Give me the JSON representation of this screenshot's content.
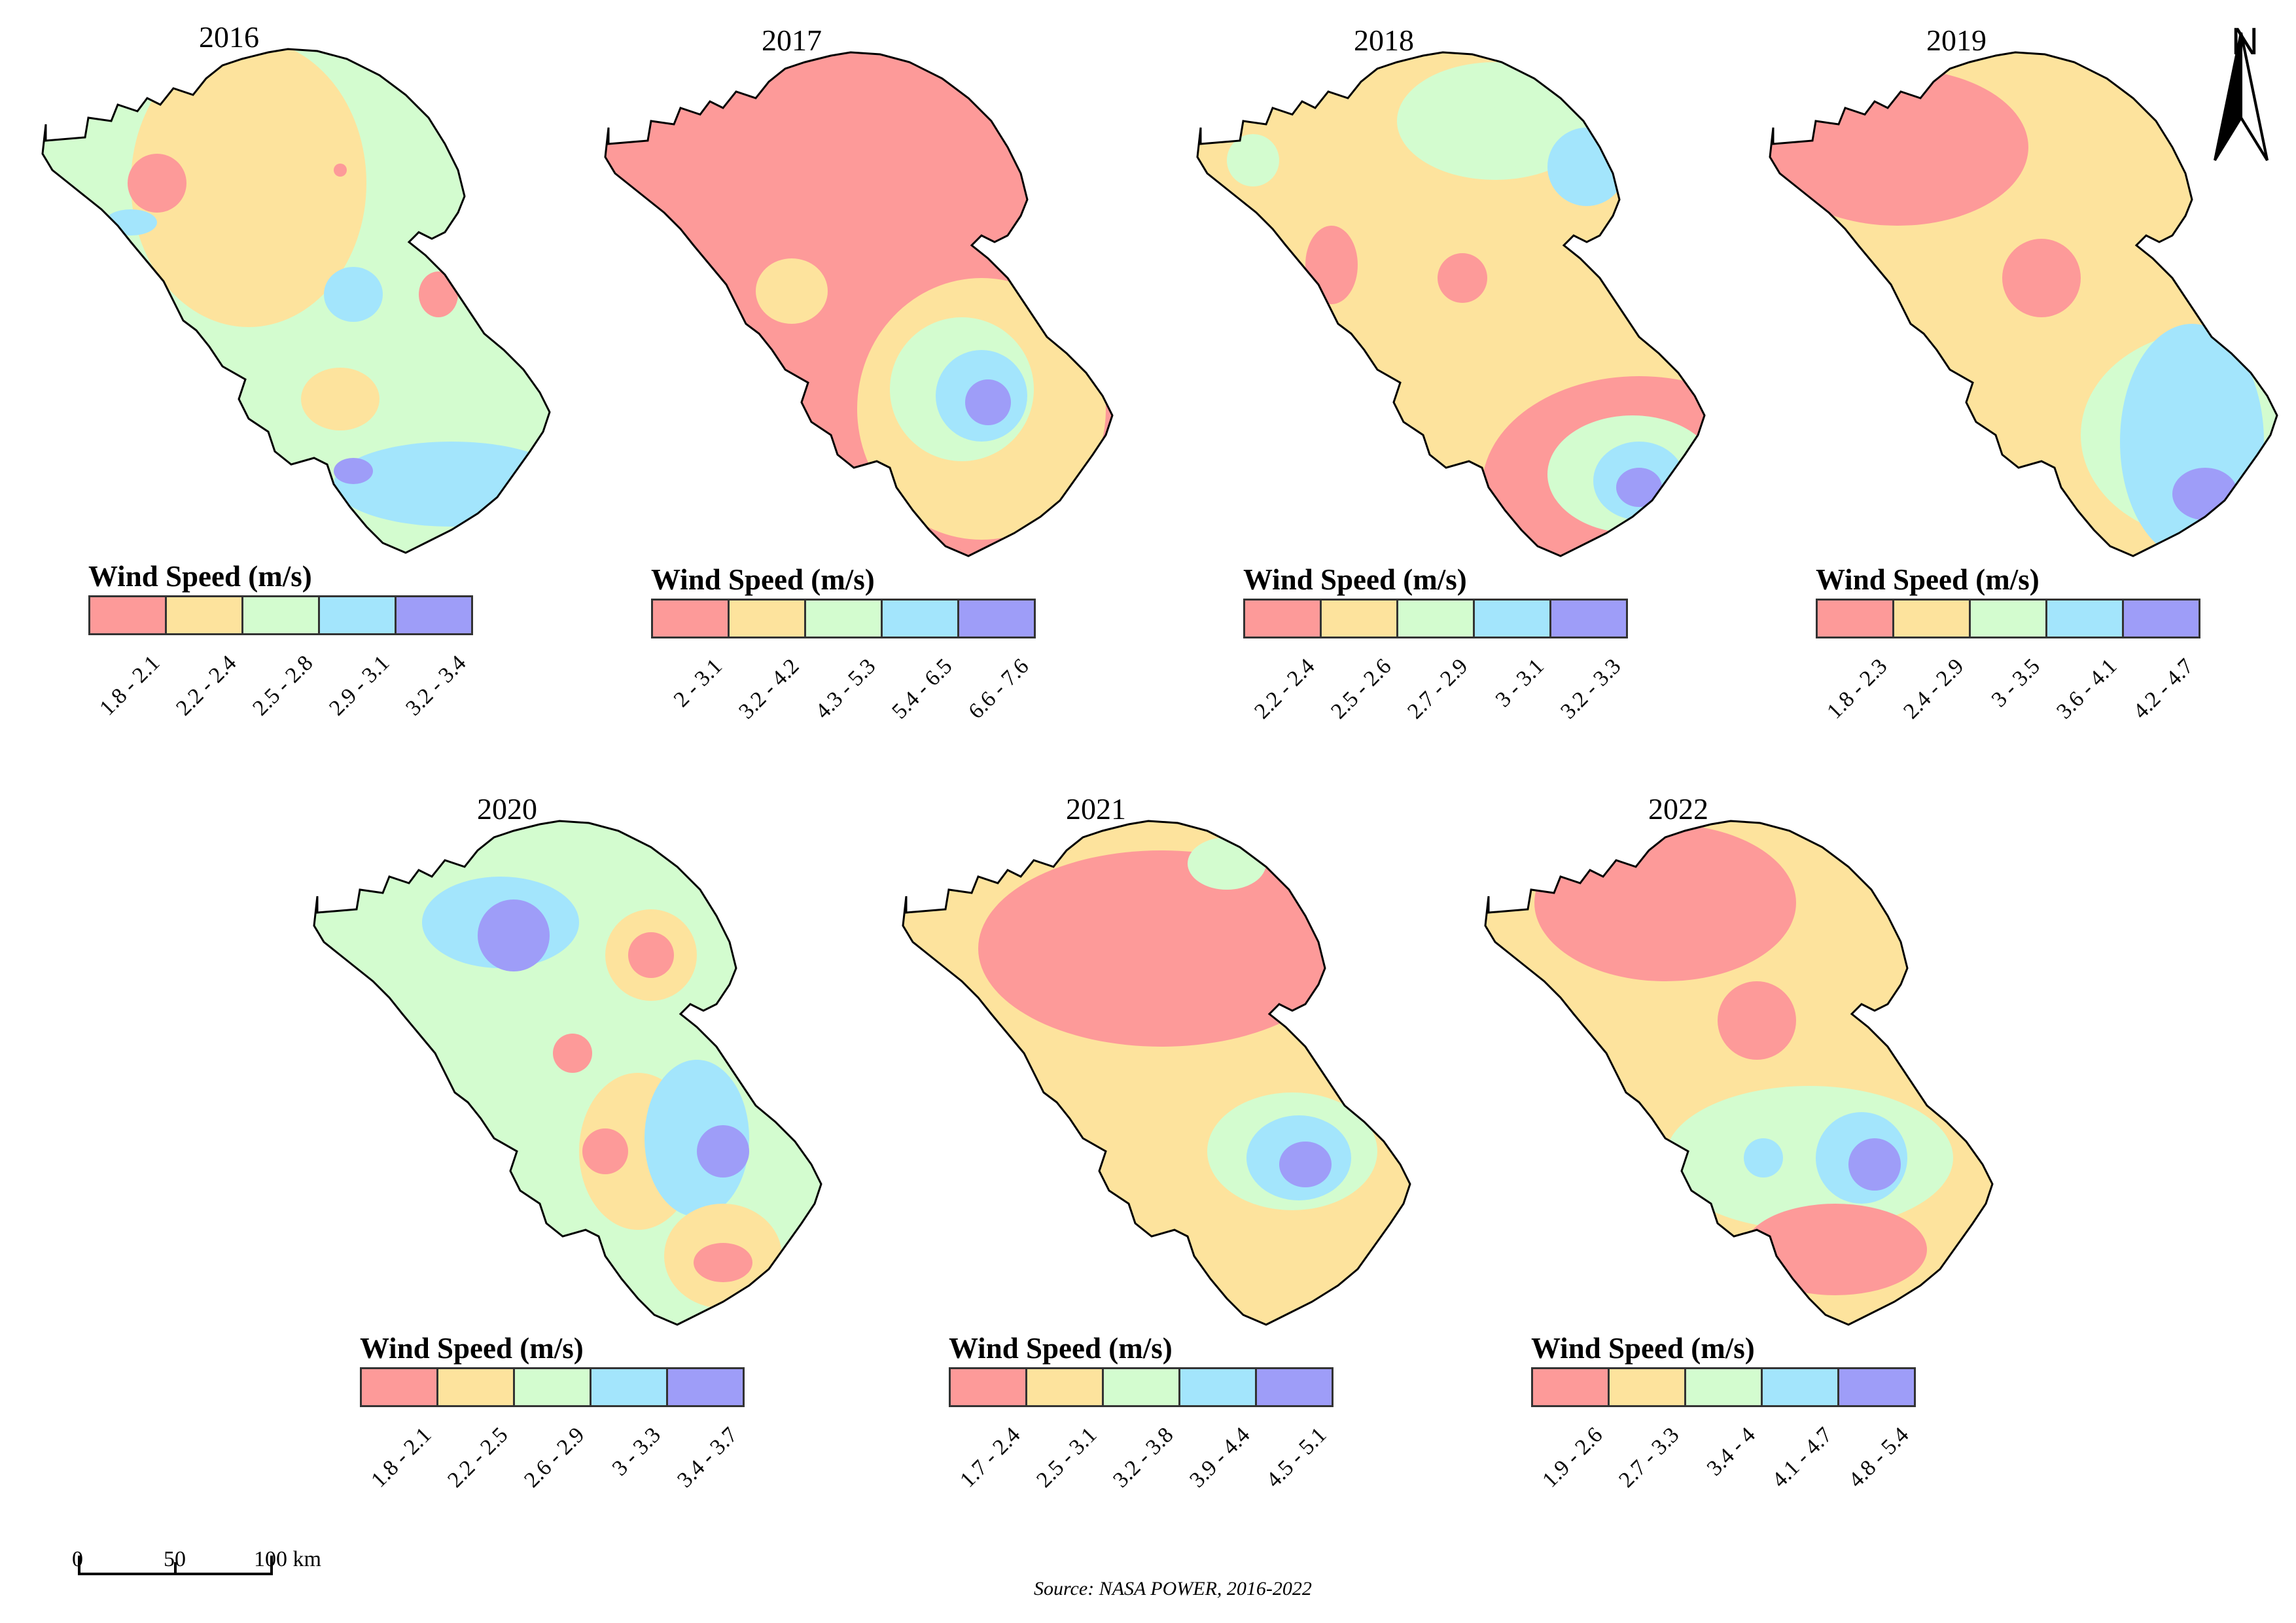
{
  "legend_title": "Wind Speed (m/s)",
  "colors": [
    "#fd9a99",
    "#fde39d",
    "#d3fccf",
    "#a3e5fc",
    "#9e9df8"
  ],
  "north_label": "N",
  "scale": {
    "zero": "0",
    "mid": "50",
    "end": "100 km"
  },
  "source": "Source: NASA POWER, 2016-2022",
  "panels": [
    {
      "year": "2016",
      "classes": [
        "1.8 - 2.1",
        "2.2 - 2.4",
        "2.5 - 2.8",
        "2.9 - 3.1",
        "3.2 - 3.4"
      ]
    },
    {
      "year": "2017",
      "classes": [
        "2 - 3.1",
        "3.2 - 4.2",
        "4.3 - 5.3",
        "5.4 - 6.5",
        "6.6 - 7.6"
      ]
    },
    {
      "year": "2018",
      "classes": [
        "2.2 - 2.4",
        "2.5 - 2.6",
        "2.7 - 2.9",
        "3 - 3.1",
        "3.2 - 3.3"
      ]
    },
    {
      "year": "2019",
      "classes": [
        "1.8 - 2.3",
        "2.4 - 2.9",
        "3 - 3.5",
        "3.6 - 4.1",
        "4.2 - 4.7"
      ]
    },
    {
      "year": "2020",
      "classes": [
        "1.8 - 2.1",
        "2.2 - 2.5",
        "2.6 - 2.9",
        "3 - 3.3",
        "3.4 - 3.7"
      ]
    },
    {
      "year": "2021",
      "classes": [
        "1.7 - 2.4",
        "2.5 - 3.1",
        "3.2 - 3.8",
        "3.9 - 4.4",
        "4.5 - 5.1"
      ]
    },
    {
      "year": "2022",
      "classes": [
        "1.9 - 2.6",
        "2.7 - 3.3",
        "3.4 - 4",
        "4.1 - 4.7",
        "4.8 - 5.4"
      ]
    }
  ]
}
